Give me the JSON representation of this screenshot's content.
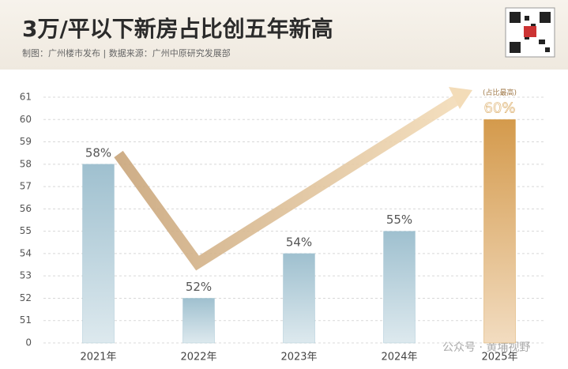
{
  "chart_data": {
    "type": "bar",
    "title": "3万/平以下新房占比创五年新高",
    "subtitle": "制图：广州楼市发布 | 数据来源：广州中原研究发展部",
    "categories": [
      "2021年",
      "2022年",
      "2023年",
      "2024年",
      "2025年"
    ],
    "values": [
      58,
      52,
      54,
      55,
      60
    ],
    "value_labels": [
      "58%",
      "52%",
      "54%",
      "55%",
      "60%"
    ],
    "colors": [
      "#a9c8d6",
      "#a9c8d6",
      "#a9c8d6",
      "#a9c8d6",
      "#d9a85f"
    ],
    "annotation": "(占比最高)",
    "watermark": "公众号 · 黄埔视野",
    "ylim": [
      0,
      61
    ],
    "yticks": [
      0,
      51,
      52,
      53,
      54,
      55,
      56,
      57,
      58,
      59,
      60,
      61
    ],
    "grid": true
  }
}
